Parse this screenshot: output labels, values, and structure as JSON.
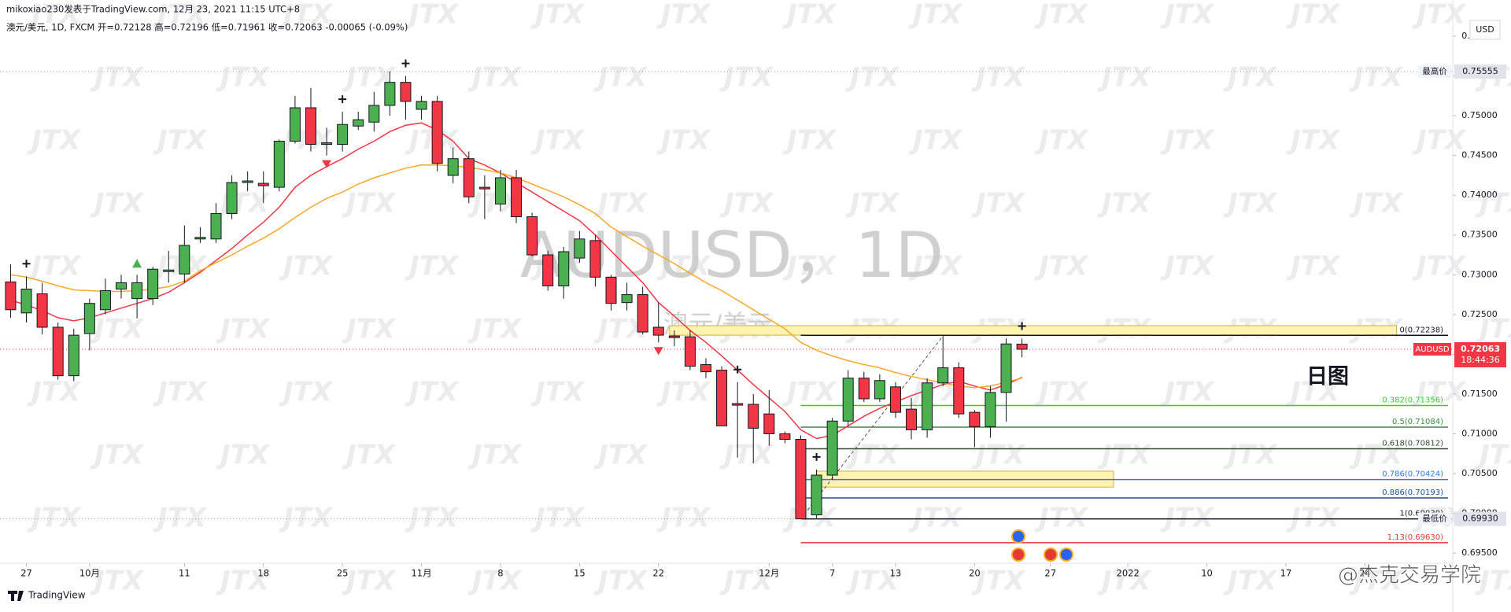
{
  "header": {
    "author_line": "mikoxiao230发表于TradingView.com, 12月 23, 2021 11:15 UTC+8",
    "symbol_line": "澳元/美元, 1D, FXCM  开=0.72128  高=0.72196  低=0.71961  收=0.72063  -0.00065 (-0.09%)"
  },
  "chart_data": {
    "type": "candlestick",
    "title": "AUDUSD，1D",
    "subtitle": "澳元/美元",
    "annotation": "日图",
    "currency": "USD",
    "watermark": "JTX",
    "xlim": [
      -0.67,
      91.26
    ],
    "xticks": [
      {
        "value": 1,
        "label": "27"
      },
      {
        "value": 5,
        "label": "10月"
      },
      {
        "value": 11,
        "label": "11"
      },
      {
        "value": 16,
        "label": "18"
      },
      {
        "value": 21,
        "label": "25"
      },
      {
        "value": 26,
        "label": "11月"
      },
      {
        "value": 31,
        "label": "8"
      },
      {
        "value": 36,
        "label": "15"
      },
      {
        "value": 41,
        "label": "22"
      },
      {
        "value": 48,
        "label": "12月"
      },
      {
        "value": 52,
        "label": "7"
      },
      {
        "value": 56,
        "label": "13"
      },
      {
        "value": 61,
        "label": "20"
      },
      {
        "value": 65.8,
        "label": "27"
      },
      {
        "value": 70.7,
        "label": "2022"
      },
      {
        "value": 75.7,
        "label": "10"
      },
      {
        "value": 80.7,
        "label": "17"
      },
      {
        "value": 85.7,
        "label": "24"
      }
    ],
    "ylim": [
      0.69382,
      0.76218
    ],
    "yticks": [
      {
        "value": 0.695,
        "label": "0.69500"
      },
      {
        "value": 0.7,
        "label": "0.70000"
      },
      {
        "value": 0.705,
        "label": "0.70500"
      },
      {
        "value": 0.71,
        "label": "0.71000"
      },
      {
        "value": 0.715,
        "label": "0.71500"
      },
      {
        "value": 0.72,
        "label": "0.72000"
      },
      {
        "value": 0.725,
        "label": "0.72500"
      },
      {
        "value": 0.73,
        "label": "0.73000"
      },
      {
        "value": 0.735,
        "label": "0.73500"
      },
      {
        "value": 0.74,
        "label": "0.74000"
      },
      {
        "value": 0.745,
        "label": "0.74500"
      },
      {
        "value": 0.75,
        "label": "0.75000"
      },
      {
        "value": 0.755,
        "label": "0.75500"
      },
      {
        "value": 0.76,
        "label": "0.76000"
      }
    ],
    "up_color": "#4caf50",
    "down_color": "#f23645",
    "open": [
      0.7291,
      0.7252,
      0.7276,
      0.7234,
      0.7173,
      0.7226,
      0.7256,
      0.7282,
      0.727,
      0.727,
      0.7304,
      0.7301,
      0.7345,
      0.7345,
      0.7377,
      0.7416,
      0.7415,
      0.741,
      0.7468,
      0.751,
      0.7466,
      0.7464,
      0.7487,
      0.7492,
      0.7513,
      0.7542,
      0.7508,
      0.7518,
      0.7425,
      0.7446,
      0.741,
      0.7389,
      0.7422,
      0.7373,
      0.7325,
      0.7286,
      0.7321,
      0.7343,
      0.7297,
      0.7265,
      0.7275,
      0.7234,
      0.7223,
      0.7222,
      0.7187,
      0.718,
      0.7138,
      0.7137,
      0.7125,
      0.71,
      0.7093,
      0.6998,
      0.7048,
      0.7116,
      0.717,
      0.7144,
      0.7159,
      0.7131,
      0.7105,
      0.7164,
      0.7183,
      0.7127,
      0.7109,
      0.7152,
      0.72128
    ],
    "high": [
      0.7313,
      0.7298,
      0.729,
      0.724,
      0.7232,
      0.727,
      0.7295,
      0.73,
      0.73,
      0.731,
      0.733,
      0.7362,
      0.736,
      0.739,
      0.7425,
      0.743,
      0.743,
      0.747,
      0.7525,
      0.7535,
      0.7485,
      0.7505,
      0.7505,
      0.753,
      0.75555,
      0.755,
      0.7525,
      0.7525,
      0.746,
      0.7455,
      0.7425,
      0.7432,
      0.7432,
      0.7378,
      0.733,
      0.7335,
      0.7355,
      0.735,
      0.73,
      0.729,
      0.7285,
      0.7265,
      0.723,
      0.723,
      0.7195,
      0.7185,
      0.7165,
      0.715,
      0.7155,
      0.7103,
      0.7098,
      0.7055,
      0.712,
      0.718,
      0.7178,
      0.7175,
      0.7165,
      0.7145,
      0.717,
      0.7223,
      0.719,
      0.713,
      0.716,
      0.722,
      0.72196
    ],
    "low": [
      0.7246,
      0.724,
      0.7225,
      0.7168,
      0.7166,
      0.7205,
      0.725,
      0.727,
      0.7245,
      0.7262,
      0.729,
      0.729,
      0.734,
      0.734,
      0.737,
      0.7405,
      0.739,
      0.7405,
      0.7465,
      0.7455,
      0.745,
      0.7455,
      0.7482,
      0.748,
      0.75,
      0.7495,
      0.7495,
      0.743,
      0.7415,
      0.739,
      0.737,
      0.738,
      0.7365,
      0.7323,
      0.728,
      0.727,
      0.7315,
      0.7285,
      0.7255,
      0.7255,
      0.7225,
      0.7215,
      0.721,
      0.718,
      0.717,
      0.711,
      0.707,
      0.7063,
      0.7085,
      0.7088,
      0.6993,
      0.6994,
      0.7042,
      0.711,
      0.714,
      0.714,
      0.712,
      0.7093,
      0.7095,
      0.716,
      0.712,
      0.7083,
      0.7095,
      0.7115,
      0.71961
    ],
    "close": [
      0.7256,
      0.7282,
      0.7234,
      0.7173,
      0.7224,
      0.7264,
      0.728,
      0.729,
      0.729,
      0.7307,
      0.7306,
      0.7337,
      0.7347,
      0.7377,
      0.7416,
      0.7418,
      0.7412,
      0.7468,
      0.751,
      0.7464,
      0.7464,
      0.7489,
      0.7495,
      0.7513,
      0.7542,
      0.7518,
      0.7518,
      0.744,
      0.7446,
      0.7398,
      0.7408,
      0.7422,
      0.7373,
      0.7325,
      0.7286,
      0.7329,
      0.7345,
      0.7297,
      0.7264,
      0.7275,
      0.7228,
      0.7224,
      0.7221,
      0.7185,
      0.7178,
      0.711,
      0.7136,
      0.7107,
      0.71,
      0.7093,
      0.6993,
      0.7048,
      0.7116,
      0.717,
      0.7144,
      0.7167,
      0.7127,
      0.7105,
      0.7164,
      0.7183,
      0.7125,
      0.7109,
      0.7152,
      0.7213,
      0.72063
    ],
    "series": [
      {
        "color": "#f23645",
        "values": [
          0.7268,
          0.7262,
          0.7255,
          0.7246,
          0.7242,
          0.7246,
          0.7252,
          0.7258,
          0.7264,
          0.727,
          0.7278,
          0.729,
          0.7303,
          0.7318,
          0.7333,
          0.735,
          0.7366,
          0.7385,
          0.741,
          0.7425,
          0.7436,
          0.7446,
          0.7458,
          0.7468,
          0.748,
          0.7488,
          0.7491,
          0.7482,
          0.7468,
          0.7446,
          0.7438,
          0.7428,
          0.7416,
          0.7404,
          0.7392,
          0.738,
          0.7368,
          0.735,
          0.733,
          0.731,
          0.729,
          0.7265,
          0.7248,
          0.723,
          0.7215,
          0.7198,
          0.718,
          0.7162,
          0.7145,
          0.7128,
          0.7105,
          0.7094,
          0.7098,
          0.711,
          0.7122,
          0.7132,
          0.714,
          0.7148,
          0.7155,
          0.7162,
          0.7166,
          0.716,
          0.7155,
          0.7162,
          0.7171
        ]
      },
      {
        "color": "#f7a928",
        "values": [
          0.73,
          0.7297,
          0.7292,
          0.7286,
          0.7281,
          0.728,
          0.7279,
          0.7279,
          0.728,
          0.7282,
          0.7285,
          0.7292,
          0.7305,
          0.7315,
          0.7325,
          0.7336,
          0.7346,
          0.7358,
          0.7372,
          0.7385,
          0.7396,
          0.7404,
          0.7414,
          0.7422,
          0.7428,
          0.7434,
          0.7438,
          0.7438,
          0.7437,
          0.7435,
          0.7432,
          0.7428,
          0.7422,
          0.7414,
          0.7406,
          0.7398,
          0.7388,
          0.7377,
          0.736,
          0.7348,
          0.7336,
          0.7325,
          0.7314,
          0.7302,
          0.729,
          0.728,
          0.7268,
          0.7256,
          0.7244,
          0.7232,
          0.7215,
          0.7205,
          0.7198,
          0.7192,
          0.7187,
          0.7183,
          0.7177,
          0.7172,
          0.7168,
          0.7164,
          0.716,
          0.7158,
          0.716,
          0.7165,
          0.717
        ]
      }
    ],
    "fib_levels": [
      {
        "label": "0(0.72238)",
        "value": 0.72238,
        "color": "#131722"
      },
      {
        "label": "0.382(0.71356)",
        "value": 0.71356,
        "color": "#33cc33"
      },
      {
        "label": "0.5(0.71084)",
        "value": 0.71084,
        "color": "#388e3c"
      },
      {
        "label": "0.618(0.70812)",
        "value": 0.70812,
        "color": "#2f4f2f"
      },
      {
        "label": "0.786(0.70424)",
        "value": 0.70424,
        "color": "#2e7dd7"
      },
      {
        "label": "0.886(0.70193)",
        "value": 0.70193,
        "color": "#1a4fa3"
      },
      {
        "label": "1(0.69930)",
        "value": 0.6993,
        "color": "#131722"
      },
      {
        "label": "1.13(0.69630)",
        "value": 0.6963,
        "color": "#e53935"
      }
    ],
    "zones": [
      {
        "low": 0.7224,
        "high": 0.7236
      },
      {
        "low": 0.7033,
        "high": 0.7053
      }
    ],
    "price_lines": [
      {
        "label": "最高价",
        "value": 0.75555
      },
      {
        "label": "最低价",
        "value": 0.6993,
        "value_label": "0.69930"
      }
    ],
    "last_price": {
      "symbol": "AUDUSD",
      "value": 0.72063,
      "countdown": "18:44:36"
    }
  },
  "footer": {
    "brand": "TradingView",
    "credit": "@杰克交易学院"
  }
}
